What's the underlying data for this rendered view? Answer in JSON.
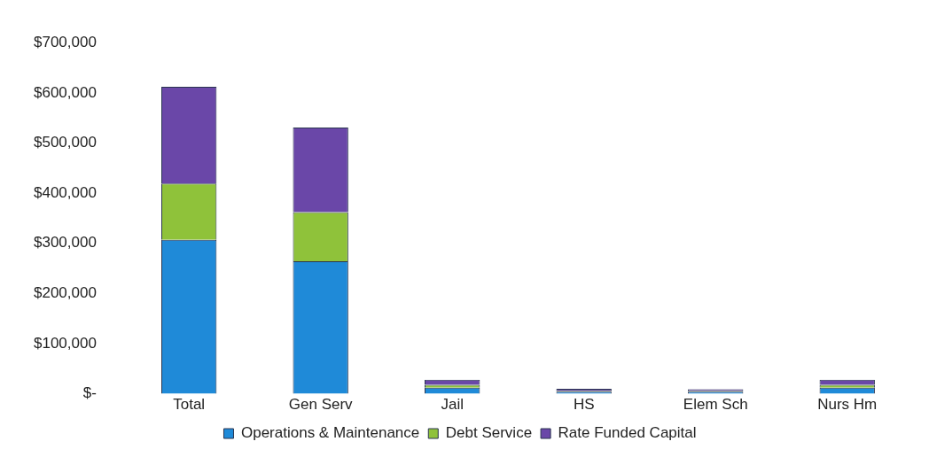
{
  "chart_data": {
    "type": "bar",
    "stacked": true,
    "categories": [
      "Total",
      "Gen Serv",
      "Jail",
      "HS",
      "Elem Sch",
      "Nurs Hm"
    ],
    "series": [
      {
        "name": "Operations & Maintenance",
        "color": "#1f8ad8",
        "values": [
          307000,
          264000,
          12000,
          4000,
          4000,
          12000
        ]
      },
      {
        "name": "Debt Service",
        "color": "#8fc23a",
        "values": [
          112000,
          98000,
          6000,
          2000,
          2000,
          6000
        ]
      },
      {
        "name": "Rate Funded Capital",
        "color": "#6a47a8",
        "values": [
          193000,
          169000,
          10000,
          4000,
          3000,
          10000
        ]
      }
    ],
    "ylim": [
      0,
      700000
    ],
    "yticks": [
      {
        "value": 0,
        "label": "$-"
      },
      {
        "value": 100000,
        "label": "$100,000"
      },
      {
        "value": 200000,
        "label": "$200,000"
      },
      {
        "value": 300000,
        "label": "$300,000"
      },
      {
        "value": 400000,
        "label": "$400,000"
      },
      {
        "value": 500000,
        "label": "$500,000"
      },
      {
        "value": 600000,
        "label": "$600,000"
      },
      {
        "value": 700000,
        "label": "$700,000"
      }
    ],
    "grid": false,
    "legend": "bottom"
  }
}
